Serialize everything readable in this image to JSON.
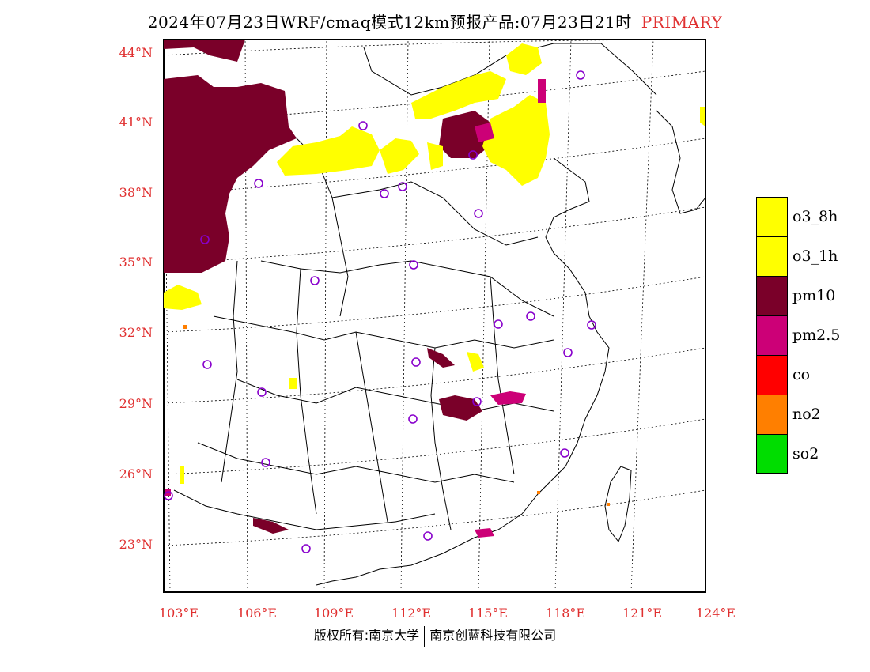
{
  "title": {
    "text": "2024年07月23日WRF/cmaq模式12km预报产品:07月23日21时",
    "tag": "PRIMARY"
  },
  "map": {
    "lon_ticks": [
      "103°E",
      "106°E",
      "109°E",
      "112°E",
      "115°E",
      "118°E",
      "121°E",
      "124°E"
    ],
    "lat_ticks": [
      "44°N",
      "41°N",
      "38°N",
      "35°N",
      "32°N",
      "29°N",
      "26°N",
      "23°N"
    ],
    "colors": {
      "o3": "#ffff00",
      "pm10": "#7a0029",
      "pm25": "#cc0077",
      "co": "#ff0000",
      "no2": "#ff7f00",
      "so2": "#00dd00",
      "station": "#8800cc",
      "tick": "#e03030"
    }
  },
  "legend": [
    {
      "label": "o3_8h",
      "color": "#ffff00"
    },
    {
      "label": "o3_1h",
      "color": "#ffff00"
    },
    {
      "label": "pm10",
      "color": "#7a0029"
    },
    {
      "label": "pm2.5",
      "color": "#cc0077"
    },
    {
      "label": "co",
      "color": "#ff0000"
    },
    {
      "label": "no2",
      "color": "#ff7f00"
    },
    {
      "label": "so2",
      "color": "#00dd00"
    }
  ],
  "footer": {
    "left": "版权所有:南京大学",
    "right": "南京创蓝科技有限公司"
  }
}
